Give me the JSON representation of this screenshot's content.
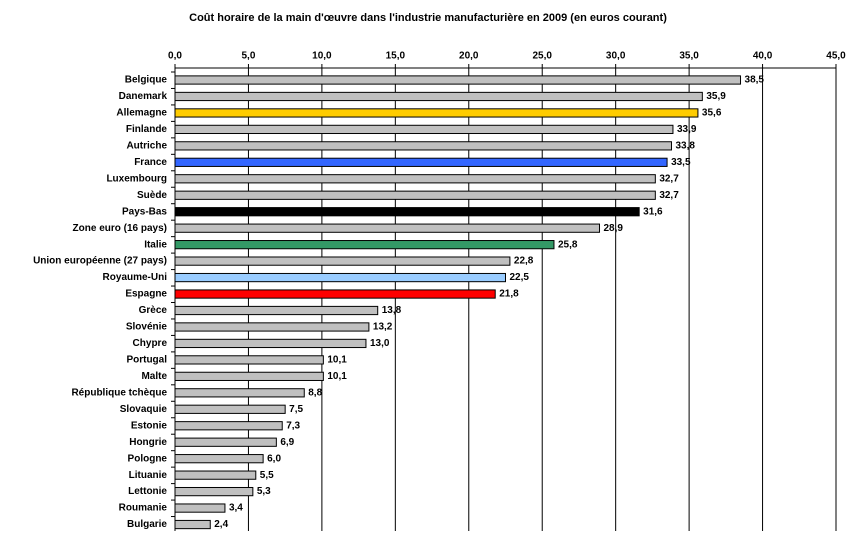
{
  "chart_data": {
    "type": "bar",
    "orientation": "horizontal",
    "title": "Coût horaire de la main d'œuvre dans l'industrie manufacturière en 2009 (en euros courant)",
    "categories": [
      "Belgique",
      "Danemark",
      "Allemagne",
      "Finlande",
      "Autriche",
      "France",
      "Luxembourg",
      "Suède",
      "Pays-Bas",
      "Zone euro (16 pays)",
      "Italie",
      "Union européenne (27 pays)",
      "Royaume-Uni",
      "Espagne",
      "Grèce",
      "Slovénie",
      "Chypre",
      "Portugal",
      "Malte",
      "République tchèque",
      "Slovaquie",
      "Estonie",
      "Hongrie",
      "Pologne",
      "Lituanie",
      "Lettonie",
      "Roumanie",
      "Bulgarie"
    ],
    "values": [
      38.5,
      35.9,
      35.6,
      33.9,
      33.8,
      33.5,
      32.7,
      32.7,
      31.6,
      28.9,
      25.8,
      22.8,
      22.5,
      21.8,
      13.8,
      13.2,
      13.0,
      10.1,
      10.1,
      8.8,
      7.5,
      7.3,
      6.9,
      6.0,
      5.5,
      5.3,
      3.4,
      2.4
    ],
    "value_labels": [
      "38,5",
      "35,9",
      "35,6",
      "33,9",
      "33,8",
      "33,5",
      "32,7",
      "32,7",
      "31,6",
      "28,9",
      "25,8",
      "22,8",
      "22,5",
      "21,8",
      "13,8",
      "13,2",
      "13,0",
      "10,1",
      "10,1",
      "8,8",
      "7,5",
      "7,3",
      "6,9",
      "6,0",
      "5,5",
      "5,3",
      "3,4",
      "2,4"
    ],
    "colors": [
      "#c0c0c0",
      "#c0c0c0",
      "#ffcc00",
      "#c0c0c0",
      "#c0c0c0",
      "#3366ff",
      "#c0c0c0",
      "#c0c0c0",
      "#000000",
      "#c0c0c0",
      "#339966",
      "#c0c0c0",
      "#99ccff",
      "#ff0000",
      "#c0c0c0",
      "#c0c0c0",
      "#c0c0c0",
      "#c0c0c0",
      "#c0c0c0",
      "#c0c0c0",
      "#c0c0c0",
      "#c0c0c0",
      "#c0c0c0",
      "#c0c0c0",
      "#c0c0c0",
      "#c0c0c0",
      "#c0c0c0",
      "#c0c0c0"
    ],
    "xlim": [
      0,
      45
    ],
    "xticks": [
      {
        "value": 0,
        "label": "0,0"
      },
      {
        "value": 5,
        "label": "5,0"
      },
      {
        "value": 10,
        "label": "10,0"
      },
      {
        "value": 15,
        "label": "15,0"
      },
      {
        "value": 20,
        "label": "20,0"
      },
      {
        "value": 25,
        "label": "25,0"
      },
      {
        "value": 30,
        "label": "30,0"
      },
      {
        "value": 35,
        "label": "35,0"
      },
      {
        "value": 40,
        "label": "40,0"
      },
      {
        "value": 45,
        "label": "45,0"
      }
    ],
    "grid": true
  }
}
